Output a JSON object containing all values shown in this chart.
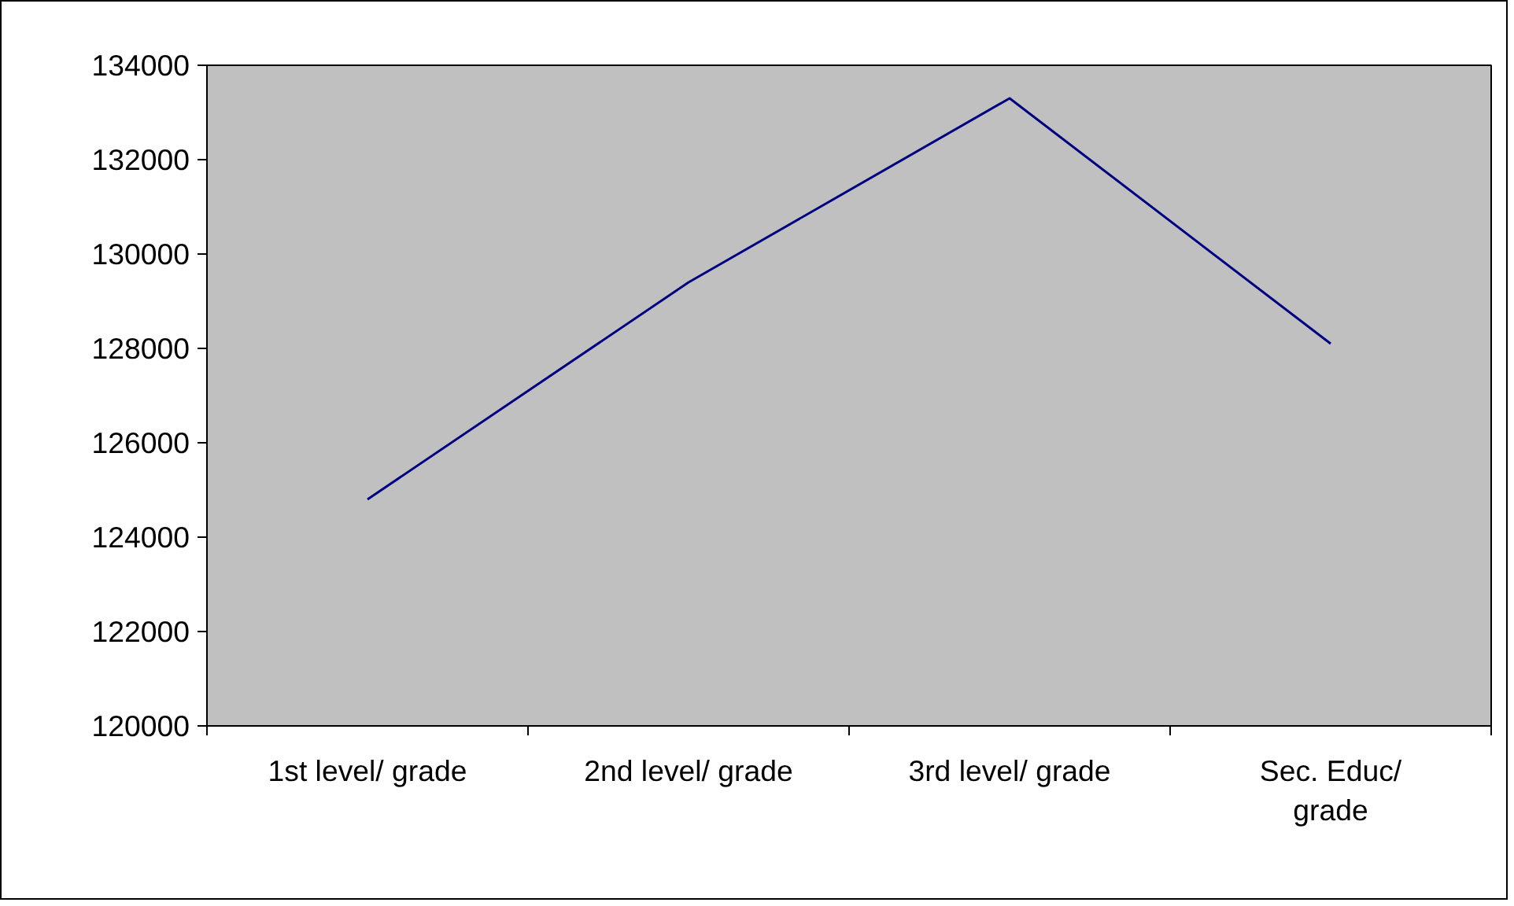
{
  "chart_data": {
    "type": "line",
    "categories": [
      "1st level/ grade",
      "2nd level/ grade",
      "3rd level/ grade",
      "Sec. Educ/\ngrade"
    ],
    "series": [
      {
        "color": "#000080",
        "values": [
          124800,
          129400,
          133300,
          128100
        ]
      }
    ],
    "ylim": [
      120000,
      134000
    ],
    "yticks": [
      120000,
      122000,
      124000,
      126000,
      128000,
      130000,
      132000,
      134000
    ],
    "grid": false,
    "marker": "none",
    "line_style": "solid"
  }
}
